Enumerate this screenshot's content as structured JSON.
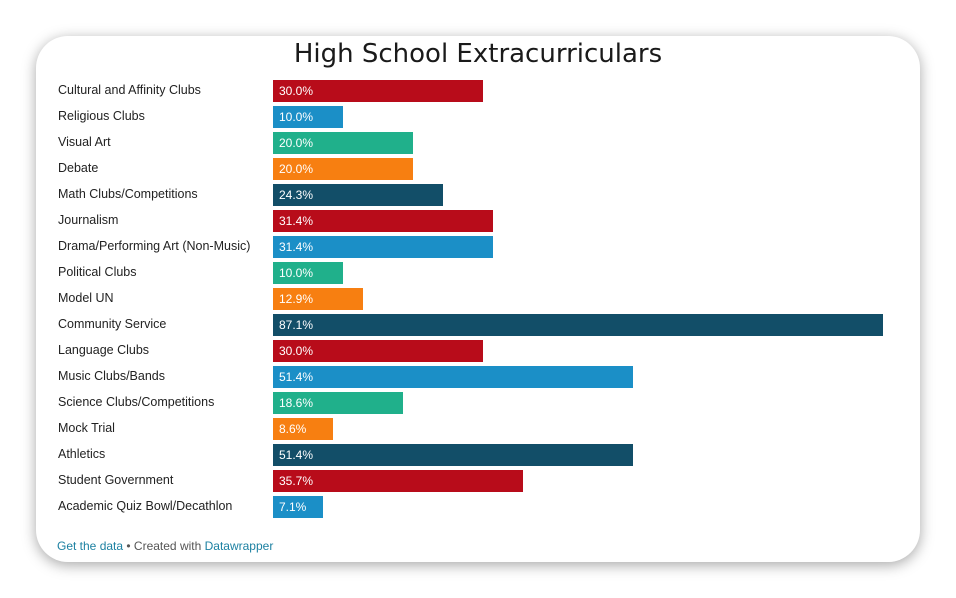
{
  "chart_data": {
    "type": "bar",
    "orientation": "horizontal",
    "title": "High School Extracurriculars",
    "xlabel": "",
    "ylabel": "",
    "xlim": [
      0,
      87.1
    ],
    "categories": [
      "Cultural and Affinity Clubs",
      "Religious Clubs",
      "Visual Art",
      "Debate",
      "Math Clubs/Competitions",
      "Journalism",
      "Drama/Performing Art (Non-Music)",
      "Political Clubs",
      "Model UN",
      "Community Service",
      "Language Clubs",
      "Music Clubs/Bands",
      "Science Clubs/Competitions",
      "Mock Trial",
      "Athletics",
      "Student Government",
      "Academic Quiz Bowl/Decathlon"
    ],
    "values": [
      30.0,
      10.0,
      20.0,
      20.0,
      24.3,
      31.4,
      31.4,
      10.0,
      12.9,
      87.1,
      30.0,
      51.4,
      18.6,
      8.6,
      51.4,
      35.7,
      7.1
    ],
    "value_labels": [
      "30.0%",
      "10.0%",
      "20.0%",
      "20.0%",
      "24.3%",
      "31.4%",
      "31.4%",
      "10.0%",
      "12.9%",
      "87.1%",
      "30.0%",
      "51.4%",
      "18.6%",
      "8.6%",
      "51.4%",
      "35.7%",
      "7.1%"
    ],
    "colors": [
      "#b80c1a",
      "#1b8fc7",
      "#20b08b",
      "#f77f11",
      "#124e68"
    ],
    "grid": false,
    "legend": "none"
  },
  "footer": {
    "get_data": "Get the data",
    "separator": " • Created with ",
    "datawrapper": "Datawrapper"
  }
}
